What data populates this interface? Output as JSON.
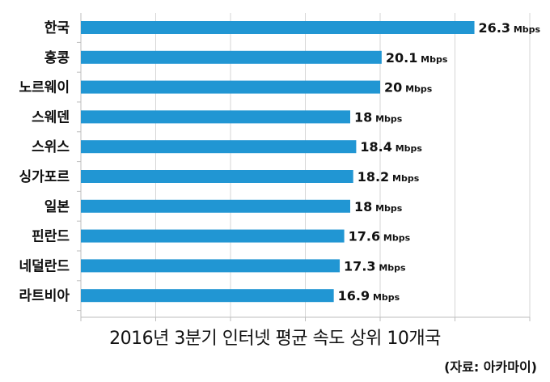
{
  "chart_data": {
    "type": "bar",
    "orientation": "horizontal",
    "title": "2016년 3분기 인터넷 평균 속도 상위 10개국",
    "source": "(자료: 아카마이)",
    "unit": "Mbps",
    "categories": [
      "한국",
      "홍콩",
      "노르웨이",
      "스웨덴",
      "스위스",
      "싱가포르",
      "일본",
      "핀란드",
      "네덜란드",
      "라트비아"
    ],
    "values": [
      26.3,
      20.1,
      20,
      18,
      18.4,
      18.2,
      18,
      17.6,
      17.3,
      16.9
    ],
    "value_labels": [
      "26.3",
      "20.1",
      "20",
      "18",
      "18.4",
      "18.2",
      "18",
      "17.6",
      "17.3",
      "16.9"
    ],
    "bar_color": "#2196d3",
    "xlabel": "",
    "ylabel": "",
    "xlim": [
      0,
      30
    ],
    "grid": true,
    "legend": "none"
  }
}
